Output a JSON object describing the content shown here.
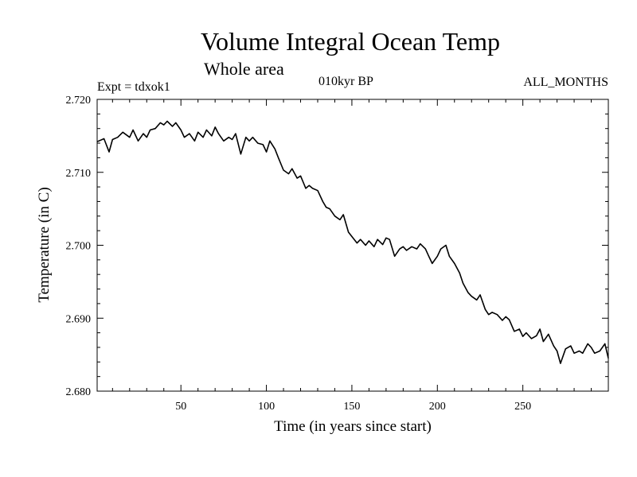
{
  "chart_data": {
    "type": "line",
    "title": "Volume Integral Ocean Temp",
    "subtitle": "Whole area",
    "left_note": "Expt = tdxok1",
    "center_note": "010kyr BP",
    "right_note": "ALL_MONTHS",
    "xlabel": "Time (in years since start)",
    "ylabel": "Temperature (in C)",
    "xlim": [
      1,
      300
    ],
    "ylim": [
      2.68,
      2.72
    ],
    "xticks": [
      50,
      100,
      150,
      200,
      250
    ],
    "xtick_labels": [
      "50",
      "100",
      "150",
      "200",
      "250"
    ],
    "yticks": [
      2.68,
      2.69,
      2.7,
      2.71,
      2.72
    ],
    "ytick_labels": [
      "2.680",
      "2.690",
      "2.700",
      "2.710",
      "2.720"
    ],
    "grid": false,
    "series": [
      {
        "name": "Volume Integral Ocean Temp",
        "x": [
          1,
          5,
          8,
          10,
          13,
          16,
          20,
          22,
          25,
          28,
          30,
          32,
          35,
          38,
          40,
          42,
          45,
          47,
          50,
          52,
          55,
          58,
          60,
          63,
          65,
          68,
          70,
          72,
          75,
          78,
          80,
          82,
          85,
          88,
          90,
          92,
          95,
          98,
          100,
          102,
          105,
          107,
          110,
          113,
          115,
          118,
          120,
          123,
          125,
          127,
          130,
          133,
          135,
          137,
          140,
          143,
          145,
          148,
          150,
          153,
          155,
          158,
          160,
          163,
          165,
          168,
          170,
          172,
          175,
          178,
          180,
          182,
          185,
          188,
          190,
          193,
          195,
          197,
          200,
          202,
          205,
          207,
          210,
          213,
          215,
          218,
          220,
          223,
          225,
          228,
          230,
          232,
          235,
          238,
          240,
          242,
          245,
          248,
          250,
          252,
          255,
          258,
          260,
          262,
          265,
          268,
          270,
          272,
          275,
          278,
          280,
          283,
          285,
          288,
          290,
          292,
          295,
          298,
          300
        ],
        "values": [
          2.7142,
          2.7146,
          2.7128,
          2.7145,
          2.7148,
          2.7155,
          2.7148,
          2.7158,
          2.7143,
          2.7153,
          2.7148,
          2.7158,
          2.716,
          2.7168,
          2.7165,
          2.717,
          2.7163,
          2.7168,
          2.7158,
          2.7148,
          2.7153,
          2.7143,
          2.7155,
          2.7148,
          2.7158,
          2.715,
          2.7162,
          2.7153,
          2.7143,
          2.7148,
          2.7145,
          2.7153,
          2.7125,
          2.7148,
          2.7143,
          2.7148,
          2.714,
          2.7138,
          2.7128,
          2.7143,
          2.7132,
          2.712,
          2.7103,
          2.7098,
          2.7105,
          2.7092,
          2.7095,
          2.7078,
          2.7082,
          2.7078,
          2.7075,
          2.706,
          2.7052,
          2.705,
          2.704,
          2.7035,
          2.7042,
          2.7018,
          2.7012,
          2.7003,
          2.7008,
          2.7,
          2.7006,
          2.6998,
          2.7008,
          2.7001,
          2.701,
          2.7008,
          2.6985,
          2.6995,
          2.6998,
          2.6993,
          2.6998,
          2.6995,
          2.7002,
          2.6995,
          2.6985,
          2.6975,
          2.6985,
          2.6995,
          2.7,
          2.6985,
          2.6975,
          2.6962,
          2.6948,
          2.6935,
          2.693,
          2.6925,
          2.6932,
          2.6912,
          2.6905,
          2.6908,
          2.6905,
          2.6897,
          2.6902,
          2.6898,
          2.6882,
          2.6885,
          2.6875,
          2.688,
          2.6872,
          2.6876,
          2.6885,
          2.6868,
          2.6878,
          2.6862,
          2.6855,
          2.6838,
          2.6858,
          2.6862,
          2.6852,
          2.6855,
          2.6852,
          2.6865,
          2.686,
          2.6852,
          2.6855,
          2.6865,
          2.6845
        ]
      }
    ]
  }
}
